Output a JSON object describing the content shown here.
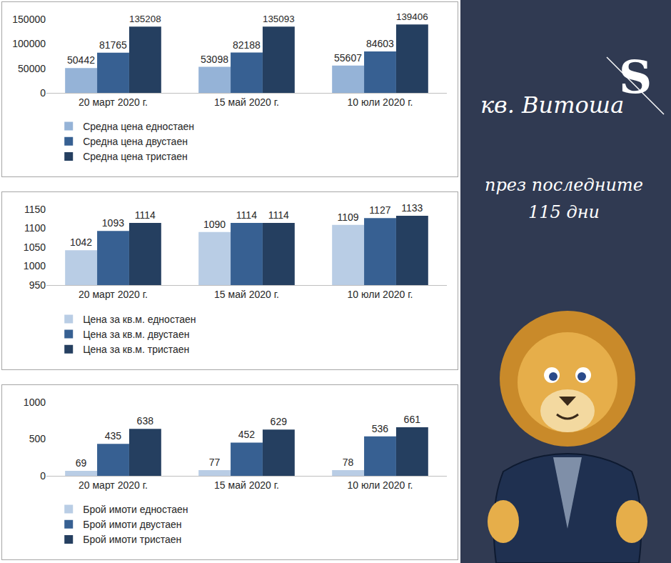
{
  "chart_data": [
    {
      "type": "bar",
      "categories": [
        "20 март 2020 г.",
        "15 май 2020 г.",
        "10 юли 2020 г."
      ],
      "series": [
        {
          "name": "Средна цена едностаен",
          "color": "#95b3d7",
          "values": [
            50442,
            53098,
            55607
          ]
        },
        {
          "name": "Средна цена двустаен",
          "color": "#376092",
          "values": [
            81765,
            82188,
            84603
          ]
        },
        {
          "name": "Средна цена тристаен",
          "color": "#253f60",
          "values": [
            135208,
            135093,
            139406
          ]
        }
      ],
      "ylim": [
        0,
        150000
      ],
      "yticks": [
        0,
        50000,
        100000,
        150000
      ],
      "grid": false,
      "data_labels": true,
      "legend": "bottom"
    },
    {
      "type": "bar",
      "categories": [
        "20 март 2020 г.",
        "15 май 2020 г.",
        "10 юли 2020 г."
      ],
      "series": [
        {
          "name": "Цена за кв.м. едностаен",
          "color": "#b9cde5",
          "values": [
            1042,
            1090,
            1109
          ]
        },
        {
          "name": "Цена за кв.м. двустаен",
          "color": "#376092",
          "values": [
            1093,
            1114,
            1127
          ]
        },
        {
          "name": "Цена за кв.м. тристаен",
          "color": "#253f60",
          "values": [
            1114,
            1114,
            1133
          ]
        }
      ],
      "ylim": [
        950,
        1150
      ],
      "yticks": [
        950,
        1000,
        1050,
        1100,
        1150
      ],
      "grid": false,
      "data_labels": true,
      "legend": "bottom"
    },
    {
      "type": "bar",
      "categories": [
        "20 март 2020 г.",
        "15 май 2020 г.",
        "10 юли 2020 г."
      ],
      "series": [
        {
          "name": "Брой имоти едностаен",
          "color": "#b9cde5",
          "values": [
            69,
            77,
            78
          ]
        },
        {
          "name": "Брой имоти двустаен",
          "color": "#376092",
          "values": [
            435,
            452,
            536
          ]
        },
        {
          "name": "Брой имоти тристаен",
          "color": "#253f60",
          "values": [
            638,
            629,
            661
          ]
        }
      ],
      "ylim": [
        0,
        1000
      ],
      "yticks": [
        0,
        500,
        1000
      ],
      "grid": false,
      "data_labels": true,
      "legend": "bottom"
    }
  ],
  "panel": {
    "title": "кв. Витоша",
    "subtitle": "през последните 115 дни",
    "logo": "S"
  }
}
